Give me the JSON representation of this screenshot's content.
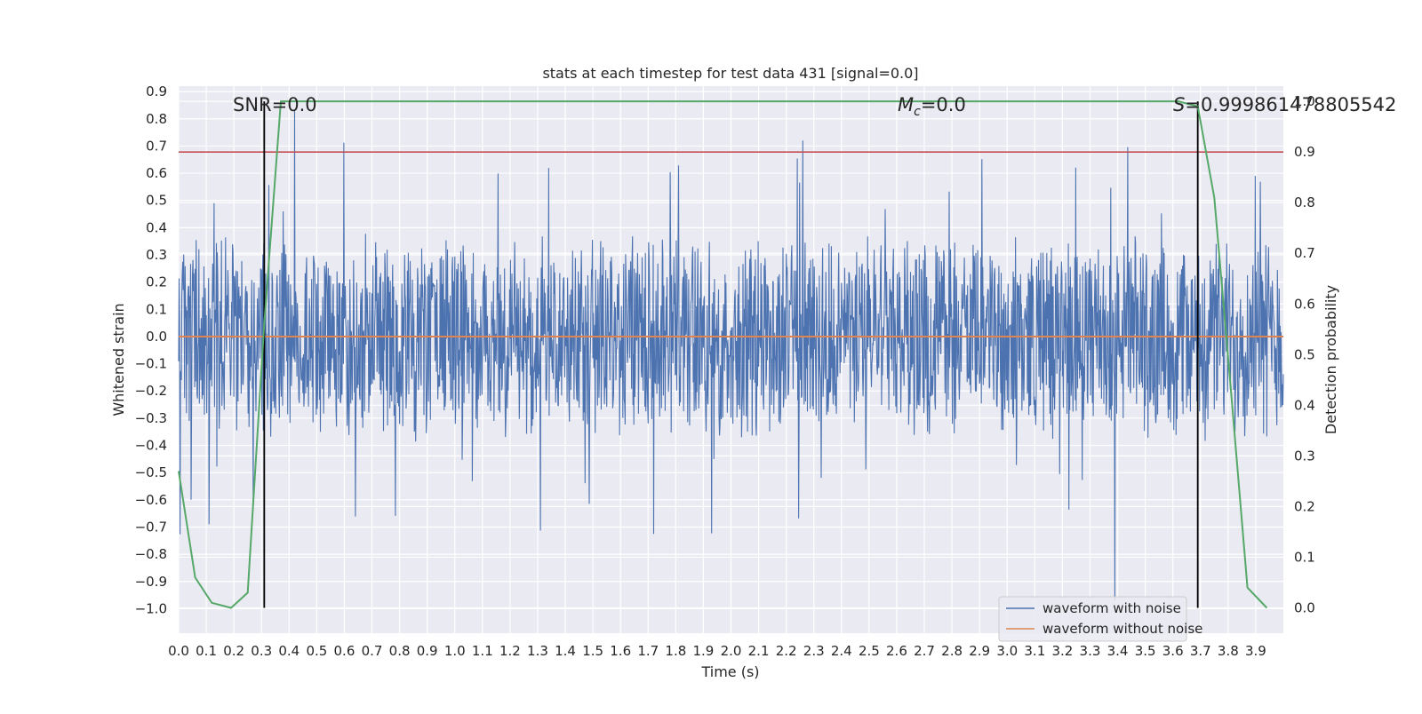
{
  "chart_data": {
    "type": "line",
    "title": "stats at each timestep for test data 431 [signal=0.0]",
    "xlabel": "Time (s)",
    "ylabel_left": "Whitened strain",
    "ylabel_right": "Detection probability",
    "xlim": [
      0.0,
      4.0
    ],
    "ylim_left": [
      -1.09,
      0.92
    ],
    "ylim_right": [
      -0.05,
      1.03
    ],
    "x_ticks": [
      "0.0",
      "0.1",
      "0.2",
      "0.3",
      "0.4",
      "0.5",
      "0.6",
      "0.7",
      "0.8",
      "0.9",
      "1.0",
      "1.1",
      "1.2",
      "1.3",
      "1.4",
      "1.5",
      "1.6",
      "1.7",
      "1.8",
      "1.9",
      "2.0",
      "2.1",
      "2.2",
      "2.3",
      "2.4",
      "2.5",
      "2.6",
      "2.7",
      "2.8",
      "2.9",
      "3.0",
      "3.1",
      "3.2",
      "3.3",
      "3.4",
      "3.5",
      "3.6",
      "3.7",
      "3.8",
      "3.9"
    ],
    "y_left_ticks": [
      "0.9",
      "0.8",
      "0.7",
      "0.6",
      "0.5",
      "0.4",
      "0.3",
      "0.2",
      "0.1",
      "0.0",
      "−0.1",
      "−0.2",
      "−0.3",
      "−0.4",
      "−0.5",
      "−0.6",
      "−0.7",
      "−0.8",
      "−0.9",
      "−1.0"
    ],
    "y_right_ticks": [
      "1.0",
      "0.9",
      "0.8",
      "0.7",
      "0.6",
      "0.5",
      "0.4",
      "0.3",
      "0.2",
      "0.1",
      "0.0"
    ],
    "grid": true,
    "legend_position": "lower-right",
    "annotations": {
      "snr": "SNR=0.0",
      "mc_symbol": "M",
      "mc_sub": "c",
      "mc_value": "=0.0",
      "s_symbol": "S",
      "s_value": "=0.999861478805542"
    },
    "threshold_right_axis": 0.9,
    "vertical_lines_x": [
      0.31,
      3.69
    ],
    "series": [
      {
        "name": "waveform with noise",
        "axis": "left",
        "color": "#4c72b0",
        "style": "dense noise, approximately uniform amplitude about ±0.35 with spikes to about 0.83 and −0.97",
        "peak_max": 0.83,
        "peak_min": -0.97
      },
      {
        "name": "waveform without noise",
        "axis": "left",
        "color": "#dd8452",
        "x": [
          0.0,
          4.0
        ],
        "y": [
          0.0,
          0.0
        ]
      },
      {
        "axis": "right",
        "color": "#55a868",
        "x": [
          0.0,
          0.06,
          0.12,
          0.19,
          0.25,
          0.31,
          0.37,
          0.44,
          0.5,
          1.0,
          2.0,
          3.0,
          3.62,
          3.69,
          3.75,
          3.81,
          3.87,
          3.94
        ],
        "y": [
          0.27,
          0.06,
          0.01,
          0.0,
          0.03,
          0.56,
          1.0,
          1.0,
          1.0,
          1.0,
          1.0,
          1.0,
          1.0,
          0.99,
          0.81,
          0.43,
          0.04,
          0.0
        ]
      }
    ],
    "colors": {
      "plot_bg": "#eaeaf2",
      "grid": "#ffffff",
      "threshold": "#c44e52",
      "vertical": "#000000"
    }
  }
}
